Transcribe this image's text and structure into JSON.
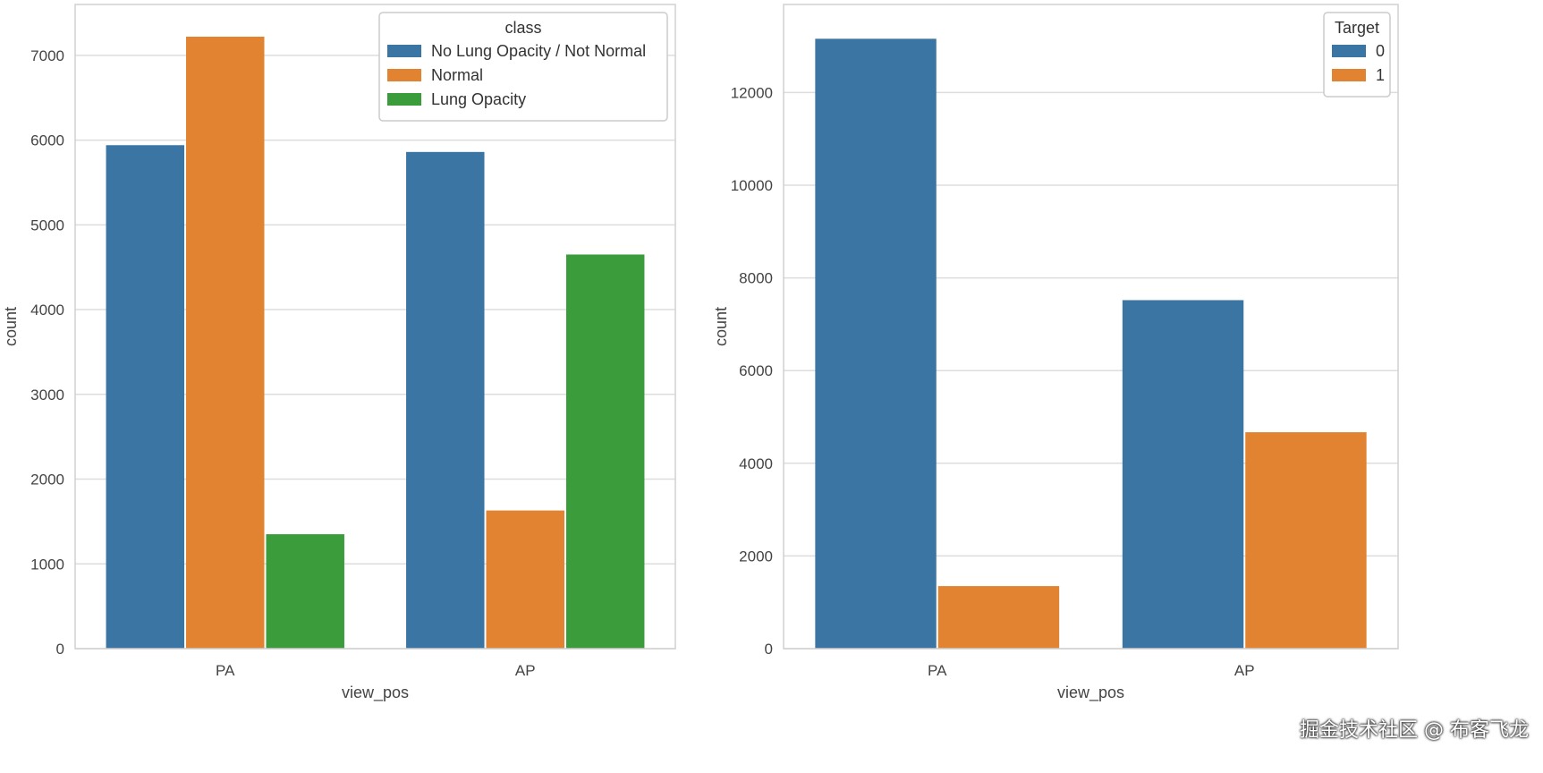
{
  "chart_data": [
    {
      "type": "bar",
      "categories": [
        "PA",
        "AP"
      ],
      "series": [
        {
          "name": "No Lung Opacity / Not Normal",
          "values": [
            5940,
            5860
          ],
          "color": "#3a75a4"
        },
        {
          "name": "Normal",
          "values": [
            7220,
            1630
          ],
          "color": "#e28331"
        },
        {
          "name": "Lung Opacity",
          "values": [
            1350,
            4650
          ],
          "color": "#3a9c3a"
        }
      ],
      "legend_title": "class",
      "legend_position": "top-right",
      "xlabel": "view_pos",
      "ylabel": "count",
      "ylim": [
        0,
        7600
      ],
      "yticks": [
        0,
        1000,
        2000,
        3000,
        4000,
        5000,
        6000,
        7000
      ],
      "grid": true
    },
    {
      "type": "bar",
      "categories": [
        "PA",
        "AP"
      ],
      "series": [
        {
          "name": "0",
          "values": [
            13160,
            7520
          ],
          "color": "#3a75a4"
        },
        {
          "name": "1",
          "values": [
            1350,
            4670
          ],
          "color": "#e28331"
        }
      ],
      "legend_title": "Target",
      "legend_position": "top-right",
      "xlabel": "view_pos",
      "ylabel": "count",
      "ylim": [
        0,
        13900
      ],
      "yticks": [
        0,
        2000,
        4000,
        6000,
        8000,
        10000,
        12000
      ],
      "grid": true
    }
  ],
  "watermark": "掘金技术社区 @ 布客飞龙"
}
